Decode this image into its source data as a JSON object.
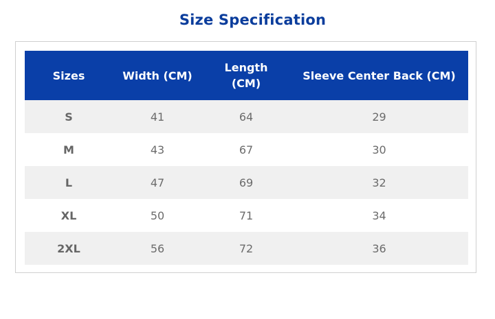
{
  "title": "Size Specification",
  "table": {
    "headers": {
      "sizes": "Sizes",
      "width": "Width (CM)",
      "length_line1": "Length",
      "length_line2": "(CM)",
      "sleeve": "Sleeve Center Back (CM)"
    },
    "rows": [
      {
        "size": "S",
        "width": "41",
        "length": "64",
        "sleeve": "29"
      },
      {
        "size": "M",
        "width": "43",
        "length": "67",
        "sleeve": "30"
      },
      {
        "size": "L",
        "width": "47",
        "length": "69",
        "sleeve": "32"
      },
      {
        "size": "XL",
        "width": "50",
        "length": "71",
        "sleeve": "34"
      },
      {
        "size": "2XL",
        "width": "56",
        "length": "72",
        "sleeve": "36"
      }
    ]
  },
  "colors": {
    "title": "#0b3d9c",
    "header_bg": "#0a3fa8",
    "header_text": "#ffffff",
    "row_alt": "#f0f0f0",
    "cell_text": "#6b6b6b"
  }
}
